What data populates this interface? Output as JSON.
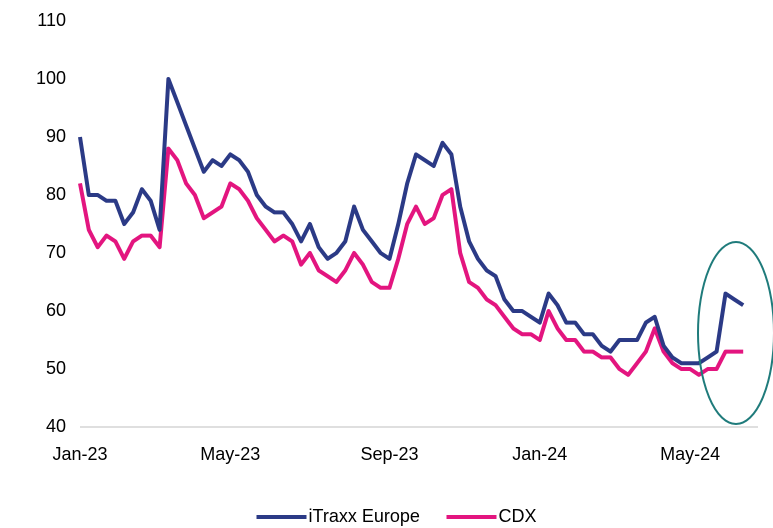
{
  "chart_data": {
    "type": "line",
    "categories": [
      "Jan-23",
      null,
      null,
      null,
      null,
      null,
      null,
      null,
      null,
      null,
      null,
      null,
      null,
      null,
      null,
      null,
      null,
      "May-23",
      null,
      null,
      null,
      null,
      null,
      null,
      null,
      null,
      null,
      null,
      null,
      null,
      null,
      null,
      null,
      null,
      null,
      "Sep-23",
      null,
      null,
      null,
      null,
      null,
      null,
      null,
      null,
      null,
      null,
      null,
      null,
      null,
      null,
      null,
      null,
      "Jan-24",
      null,
      null,
      null,
      null,
      null,
      null,
      null,
      null,
      null,
      null,
      null,
      null,
      null,
      null,
      null,
      null,
      "May-24",
      null,
      null,
      null,
      null,
      null,
      null
    ],
    "series": [
      {
        "name": "iTraxx Europe",
        "color": "#2b3a86",
        "values": [
          90,
          80,
          80,
          79,
          79,
          75,
          77,
          81,
          79,
          74,
          100,
          96,
          92,
          88,
          84,
          86,
          85,
          87,
          86,
          84,
          80,
          78,
          77,
          77,
          75,
          72,
          75,
          71,
          69,
          70,
          72,
          78,
          74,
          72,
          70,
          69,
          75,
          82,
          87,
          86,
          85,
          89,
          87,
          78,
          72,
          69,
          67,
          66,
          62,
          60,
          60,
          59,
          58,
          63,
          61,
          58,
          58,
          56,
          56,
          54,
          53,
          55,
          55,
          55,
          58,
          59,
          54,
          52,
          51,
          51,
          51,
          52,
          53,
          63,
          62,
          61
        ]
      },
      {
        "name": "CDX",
        "color": "#e3157f",
        "values": [
          82,
          74,
          71,
          73,
          72,
          69,
          72,
          73,
          73,
          71,
          88,
          86,
          82,
          80,
          76,
          77,
          78,
          82,
          81,
          79,
          76,
          74,
          72,
          73,
          72,
          68,
          70,
          67,
          66,
          65,
          67,
          70,
          68,
          65,
          64,
          64,
          69,
          75,
          78,
          75,
          76,
          80,
          81,
          70,
          65,
          64,
          62,
          61,
          59,
          57,
          56,
          56,
          55,
          60,
          57,
          55,
          55,
          53,
          53,
          52,
          52,
          50,
          49,
          51,
          53,
          57,
          53,
          51,
          50,
          50,
          49,
          50,
          50,
          53,
          53,
          53
        ]
      }
    ],
    "ylim": [
      40,
      110
    ],
    "yticks": [
      40,
      50,
      60,
      70,
      80,
      90,
      100,
      110
    ],
    "grid": false,
    "legend": "bottom"
  }
}
